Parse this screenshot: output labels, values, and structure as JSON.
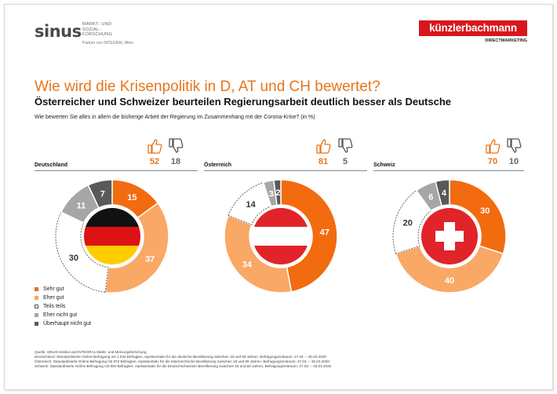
{
  "header": {
    "sinus_logo": "sinus",
    "sinus_tagline_1": "MARKT- UND",
    "sinus_tagline_2": "SOZIAL-",
    "sinus_tagline_3": "FORSCHUNG",
    "sinus_partner": "Partner von INTEGRAL Wien",
    "kb_logo": "künzlerbachmann",
    "kb_sub": "DIRECTMARKETING"
  },
  "title": "Wie wird die Krisenpolitik in D, AT und CH bewertet?",
  "subtitle": "Österreicher und Schweizer beurteilen Regierungsarbeit deutlich besser als Deutsche",
  "question": "Wie bewerten Sie alles in allem die bisherige Arbeit der Regierung im Zusammenhang mit der Corona-Krise? (in %)",
  "colors": {
    "sehr_gut": "#f26b0f",
    "eher_gut": "#f9a865",
    "teils_teils": "#ffffff",
    "eher_nicht_gut": "#a6a6a6",
    "ueberhaupt_nicht_gut": "#595959",
    "accent": "#e8751a"
  },
  "legend": [
    "Sehr gut",
    "Eher gut",
    "Teils teils",
    "Eher nicht gut",
    "Überhaupt nicht gut"
  ],
  "chart_data": [
    {
      "type": "pie",
      "title": "Deutschland",
      "categories": [
        "Sehr gut",
        "Eher gut",
        "Teils teils",
        "Eher nicht gut",
        "Überhaupt nicht gut"
      ],
      "values": [
        15,
        37,
        30,
        11,
        7
      ],
      "thumbs_up": "52",
      "thumbs_down": "18",
      "flag": "germany"
    },
    {
      "type": "pie",
      "title": "Österreich",
      "categories": [
        "Sehr gut",
        "Eher gut",
        "Teils teils",
        "Eher nicht gut",
        "Überhaupt nicht gut"
      ],
      "values": [
        47,
        34,
        14,
        3,
        2
      ],
      "thumbs_up": "81",
      "thumbs_down": "5",
      "flag": "austria"
    },
    {
      "type": "pie",
      "title": "Schweiz",
      "categories": [
        "Sehr gut",
        "Eher gut",
        "Teils teils",
        "Eher nicht gut",
        "Überhaupt nicht gut"
      ],
      "values": [
        30,
        40,
        20,
        6,
        4
      ],
      "thumbs_up": "70",
      "thumbs_down": "10",
      "flag": "switzerland"
    }
  ],
  "sources": [
    "Quelle: SINUS-Institut und INTEGRAL Markt- und Meinungsforschung",
    "Deutschland: Standardisierte Online-Befragung mit 1.034 Befragten, repräsentativ für die deutsche Bevölkerung zwischen 18 und 69 Jahren, Befragungszeitraum: 27.03. – 30.03.2020",
    "Österreich: Standardisierte Online-Befragung mit 972 Befragten, repräsentativ für die österreichische Bevölkerung zwischen 18 und 69 Jahren, Befragungszeitraum: 27.03. – 30.03.2020",
    "Schweiz: Standardisierte Online-Befragung mit 894 Befragten, repräsentativ für die Deutschschweizer Bevölkerung zwischen 18 und 69 Jahren, Befragungszeitraum: 27.03. – 03.04.2020"
  ]
}
